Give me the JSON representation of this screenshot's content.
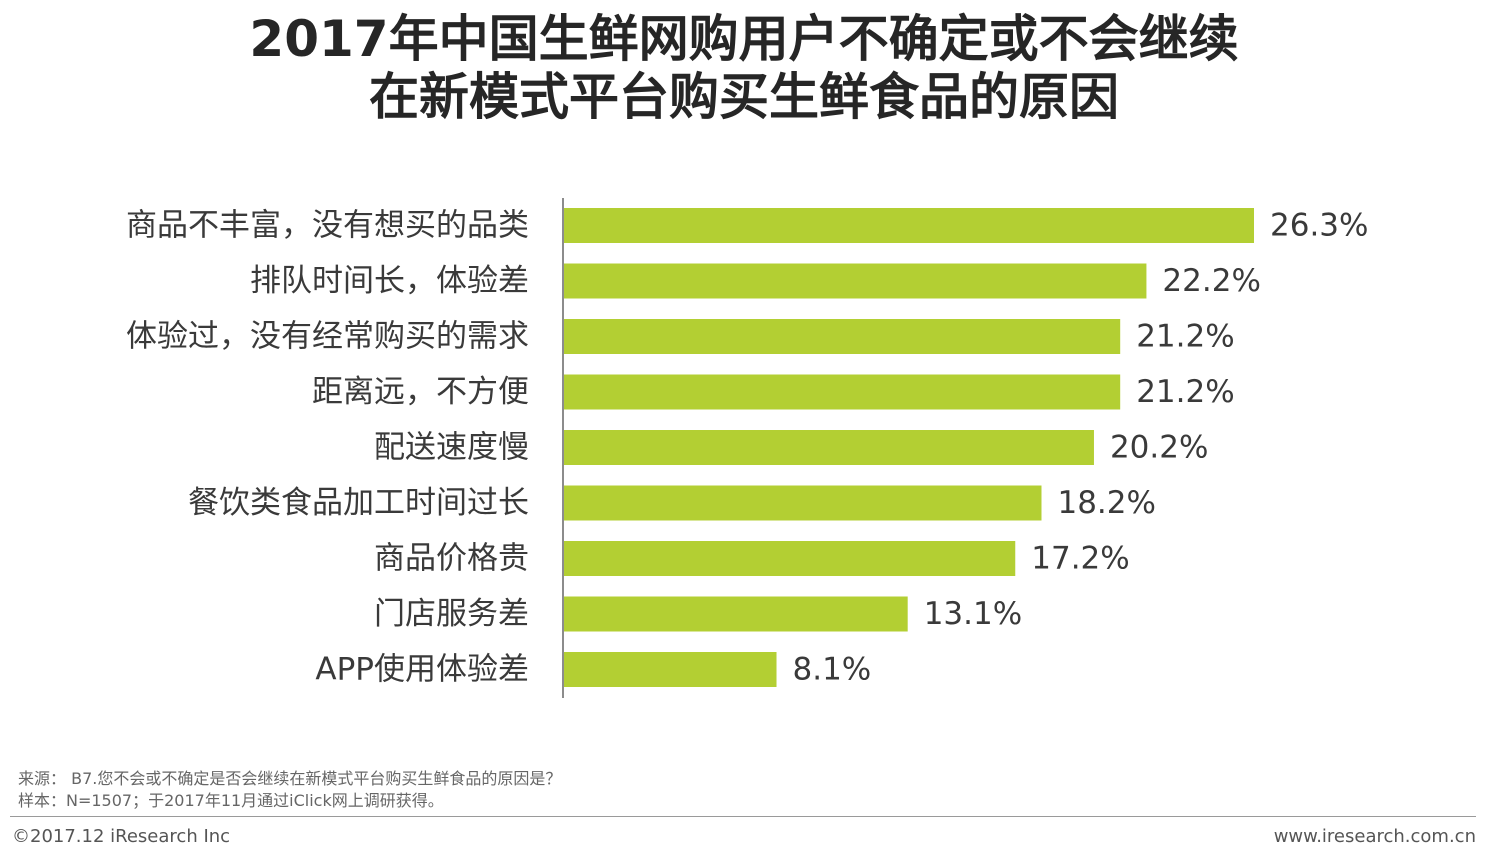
{
  "title": {
    "line1": "2017年中国生鲜网购用户不确定或不会继续",
    "line2": "在新模式平台购买生鲜食品的原因"
  },
  "chart_data": {
    "type": "bar",
    "orientation": "horizontal",
    "categories": [
      "商品不丰富，没有想买的品类",
      "排队时间长，体验差",
      "体验过，没有经常购买的需求",
      "距离远，不方便",
      "配送速度慢",
      "餐饮类食品加工时间过长",
      "商品价格贵",
      "门店服务差",
      "APP使用体验差"
    ],
    "values": [
      26.3,
      22.2,
      21.2,
      21.2,
      20.2,
      18.2,
      17.2,
      13.1,
      8.1
    ],
    "value_labels": [
      "26.3%",
      "22.2%",
      "21.2%",
      "21.2%",
      "20.2%",
      "18.2%",
      "17.2%",
      "13.1%",
      "8.1%"
    ],
    "bar_color": "#b3cf33",
    "axis_color": "#8c8c8c"
  },
  "footer": {
    "source": "来源：  B7.您不会或不确定是否会继续在新模式平台购买生鲜食品的原因是？",
    "sample": "样本：N=1507；于2017年11月通过iClick网上调研获得。",
    "copyright": "©2017.12 iResearch Inc",
    "website": "www.iresearch.com.cn"
  }
}
